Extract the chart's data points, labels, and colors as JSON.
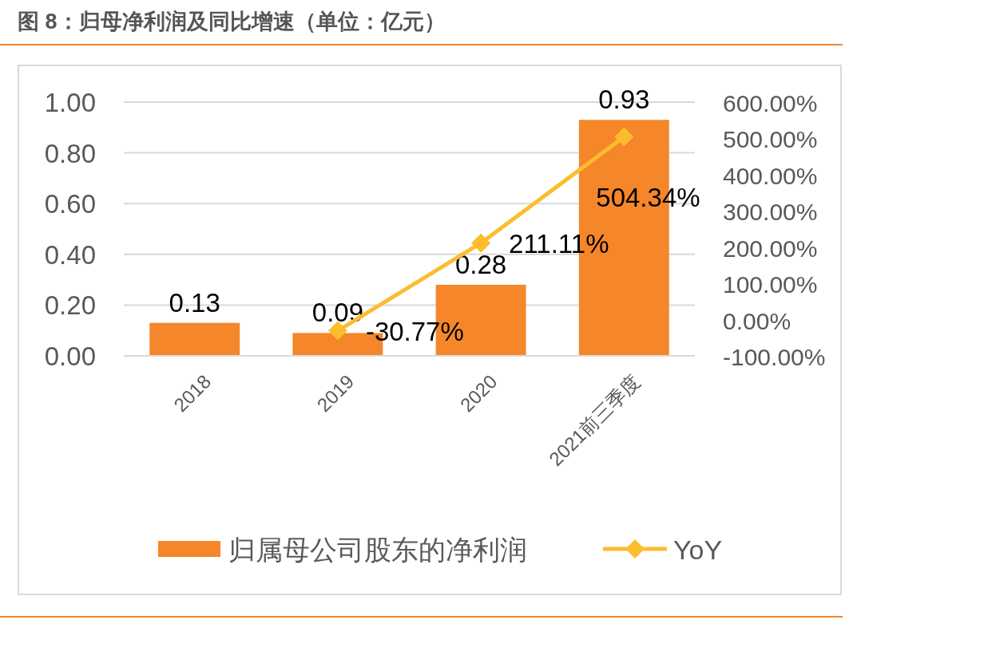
{
  "chart_data": {
    "type": "bar",
    "title": "图 8：归母净利润及同比增速（单位：亿元）",
    "categories": [
      "2018",
      "2019",
      "2020",
      "2021前三季度"
    ],
    "series": [
      {
        "name": "归属母公司股东的净利润",
        "color": "#f5862a",
        "values": [
          0.13,
          0.09,
          0.28,
          0.93
        ],
        "value_labels": [
          "0.13",
          "0.09",
          "0.28",
          "0.93"
        ]
      },
      {
        "name": "YoY",
        "type": "line",
        "axis": "y2",
        "color": "#fbbd2e",
        "marker": "diamond",
        "values": [
          null,
          -30.77,
          211.11,
          504.34
        ],
        "value_labels": [
          null,
          "-30.77%",
          "211.11%",
          "504.34%"
        ]
      }
    ],
    "ylim": [
      0,
      1
    ],
    "yticks": [
      {
        "value": 0,
        "label": "0.00"
      },
      {
        "value": 0.2,
        "label": "0.20"
      },
      {
        "value": 0.4,
        "label": "0.40"
      },
      {
        "value": 0.6,
        "label": "0.60"
      },
      {
        "value": 0.8,
        "label": "0.80"
      },
      {
        "value": 1,
        "label": "1.00"
      }
    ],
    "y2lim": [
      -100,
      600
    ],
    "y2ticks": [
      {
        "value": -100,
        "label": "-100.00%"
      },
      {
        "value": 0,
        "label": "0.00%"
      },
      {
        "value": 100,
        "label": "100.00%"
      },
      {
        "value": 200,
        "label": "200.00%"
      },
      {
        "value": 300,
        "label": "300.00%"
      },
      {
        "value": 400,
        "label": "400.00%"
      },
      {
        "value": 500,
        "label": "500.00%"
      },
      {
        "value": 600,
        "label": "600.00%"
      }
    ],
    "grid": "y",
    "legend": "bottom"
  }
}
